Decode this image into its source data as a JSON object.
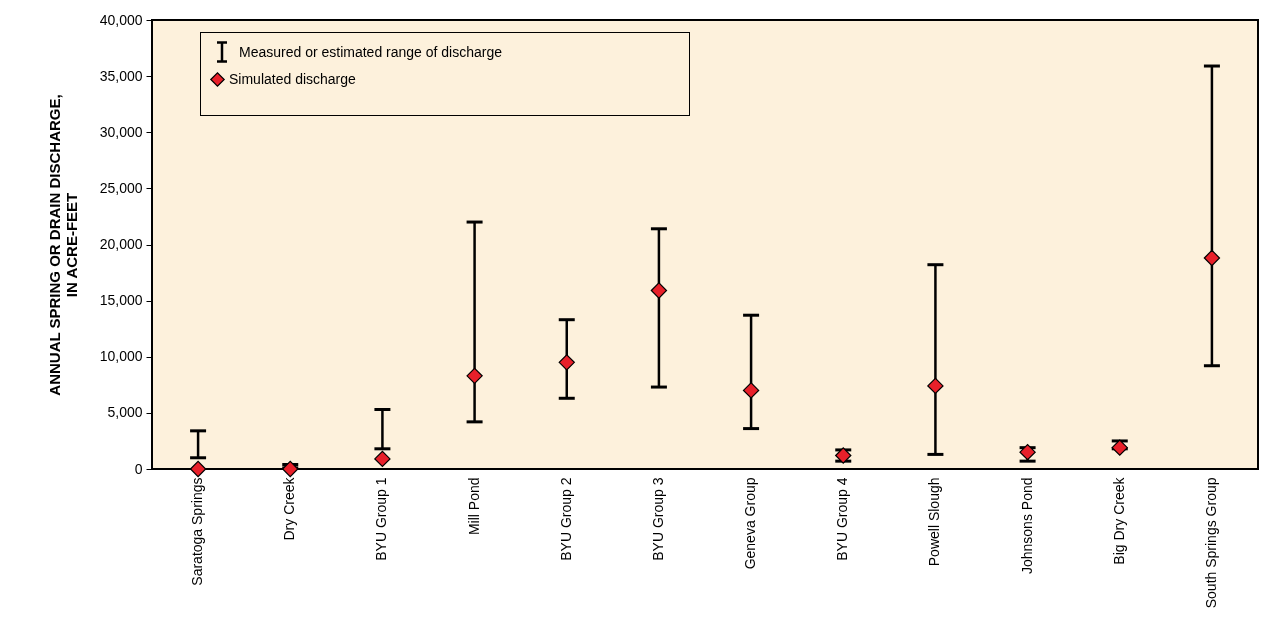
{
  "chart_data": {
    "type": "scatter",
    "ylabel": "ANNUAL SPRING OR DRAIN DISCHARGE, IN ACRE-FEET",
    "categories": [
      "Saratoga Springs",
      "Dry Creek",
      "BYU Group 1",
      "Mill Pond",
      "BYU Group 2",
      "BYU Group 3",
      "Geneva Group",
      "BYU Group 4",
      "Powell Slough",
      "Johnsons Pond",
      "Big Dry Creek",
      "South Springs Group"
    ],
    "series": [
      {
        "name": "Simulated discharge",
        "color": "#e8202a",
        "marker": "diamond",
        "values": [
          0,
          0,
          900,
          8300,
          9500,
          15900,
          7000,
          1200,
          7400,
          1500,
          1900,
          18800
        ],
        "errors": [
          [
            1000,
            3400
          ],
          [
            100,
            400
          ],
          [
            1800,
            5300
          ],
          [
            4200,
            22000
          ],
          [
            6300,
            13300
          ],
          [
            7300,
            21400
          ],
          [
            3600,
            13700
          ],
          [
            700,
            1700
          ],
          [
            1300,
            18200
          ],
          [
            700,
            1900
          ],
          [
            1800,
            2500
          ],
          [
            9200,
            35900
          ]
        ]
      }
    ],
    "annotations": [
      "Measured or estimated range of discharge"
    ],
    "ylim": [
      0,
      40000
    ],
    "yticks": [
      {
        "value": 0,
        "label": "0"
      },
      {
        "value": 5000,
        "label": "5,000"
      },
      {
        "value": 10000,
        "label": "10,000"
      },
      {
        "value": 15000,
        "label": "15,000"
      },
      {
        "value": 20000,
        "label": "20,000"
      },
      {
        "value": 25000,
        "label": "25,000"
      },
      {
        "value": 30000,
        "label": "30,000"
      },
      {
        "value": 35000,
        "label": "35,000"
      },
      {
        "value": 40000,
        "label": "40,000"
      }
    ],
    "grid": false,
    "legend": "top left"
  }
}
